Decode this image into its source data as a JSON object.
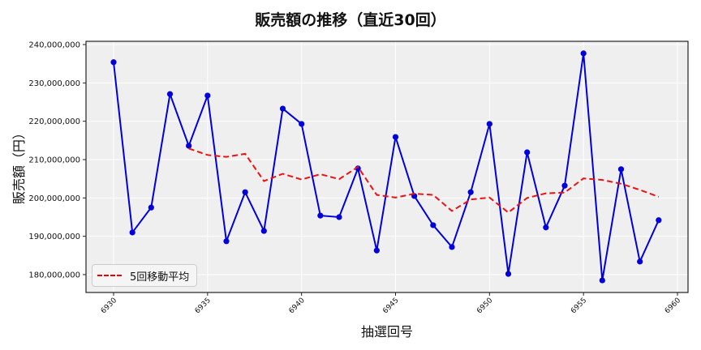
{
  "chart_data": {
    "type": "line",
    "title": "販売額の推移（直近30回）",
    "xlabel": "抽選回号",
    "ylabel": "販売額（円）",
    "x": [
      6930,
      6931,
      6932,
      6933,
      6934,
      6935,
      6936,
      6937,
      6938,
      6939,
      6940,
      6941,
      6942,
      6943,
      6944,
      6945,
      6946,
      6947,
      6948,
      6949,
      6950,
      6951,
      6952,
      6953,
      6954,
      6955,
      6956,
      6957,
      6958,
      6959
    ],
    "series": [
      {
        "name": "販売額",
        "color": "#0000dd",
        "style": "solid-marker",
        "values": [
          235400000,
          191000000,
          197500000,
          227100000,
          213600000,
          226700000,
          188700000,
          201500000,
          191400000,
          223300000,
          219300000,
          195400000,
          195000000,
          207700000,
          186300000,
          215900000,
          200500000,
          192900000,
          187200000,
          201500000,
          219300000,
          180200000,
          211900000,
          192300000,
          203200000,
          237700000,
          178500000,
          207500000,
          183400000,
          194200000
        ]
      },
      {
        "name": "5回移動平均",
        "color": "#ee1111",
        "style": "dashed",
        "values": [
          null,
          null,
          null,
          null,
          212900000,
          211200000,
          210700000,
          211500000,
          204400000,
          206300000,
          204800000,
          206200000,
          204900000,
          208100000,
          200800000,
          200100000,
          201100000,
          200800000,
          196600000,
          199600000,
          200100000,
          196200000,
          200000000,
          201200000,
          201400000,
          205100000,
          204700000,
          203700000,
          202100000,
          200300000
        ]
      }
    ],
    "xlim": [
      6928.5,
      6960.5
    ],
    "ylim": [
      175500000,
      241000000
    ],
    "x_ticks": [
      6930,
      6935,
      6940,
      6945,
      6950,
      6955,
      6960
    ],
    "y_ticks": [
      180000000,
      190000000,
      200000000,
      210000000,
      220000000,
      230000000,
      240000000
    ],
    "y_tick_labels": [
      "180,000,000",
      "190,000,000",
      "200,000,000",
      "210,000,000",
      "220,000,000",
      "230,000,000",
      "240,000,000"
    ],
    "legend": {
      "entries": [
        "5回移動平均"
      ],
      "position": "lower left"
    },
    "grid": true
  },
  "legend_label": "5回移動平均"
}
